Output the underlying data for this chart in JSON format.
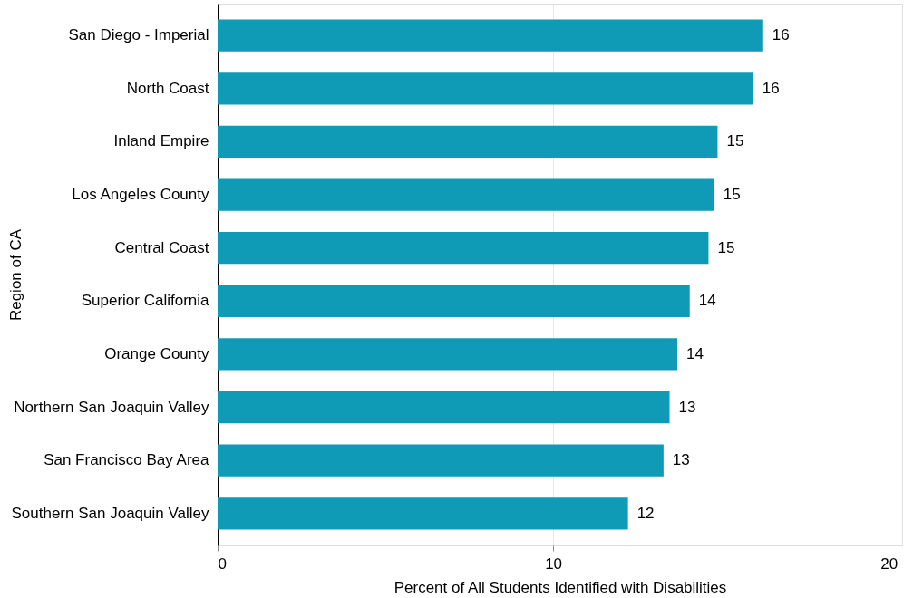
{
  "chart_data": {
    "type": "bar",
    "orientation": "horizontal",
    "ylabel": "Region of CA",
    "xlabel": "Percent of All Students Identified with Disabilities",
    "categories": [
      "San Diego - Imperial",
      "North Coast",
      "Inland Empire",
      "Los Angeles County",
      "Central Coast",
      "Superior California",
      "Orange County",
      "Northern San Joaquin Valley",
      "San Francisco Bay Area",
      "Southern San Joaquin Valley"
    ],
    "values": [
      16.26,
      15.96,
      14.9,
      14.8,
      14.63,
      14.07,
      13.7,
      13.47,
      13.29,
      12.23
    ],
    "value_labels": [
      "16",
      "16",
      "15",
      "15",
      "15",
      "14",
      "14",
      "13",
      "13",
      "12"
    ],
    "color": "#0f9bb5",
    "xlim": [
      0,
      20.4
    ],
    "xticks": [
      0,
      10,
      20
    ],
    "grid": "x"
  }
}
